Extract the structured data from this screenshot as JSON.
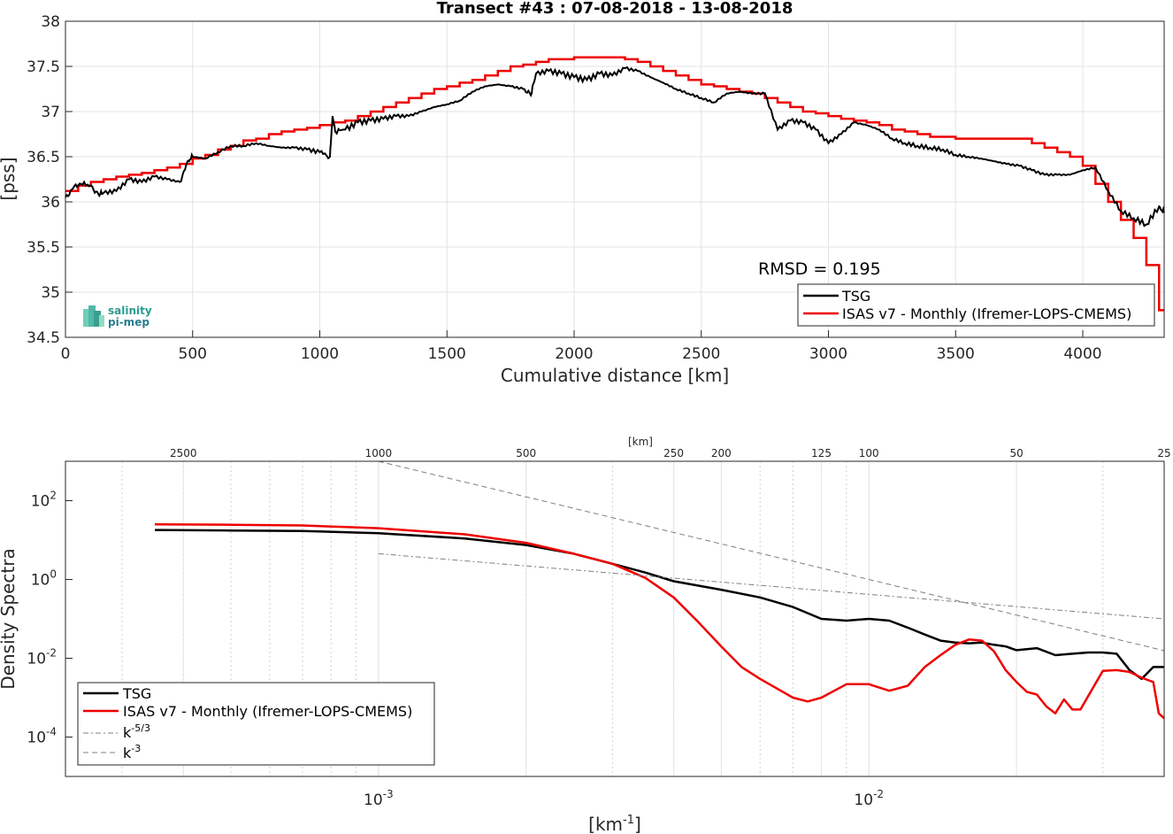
{
  "chart_data": [
    {
      "type": "line",
      "title": "Transect #43 : 07-08-2018 - 13-08-2018",
      "xlabel": "Cumulative distance [km]",
      "ylabel": "[pss]",
      "xlim": [
        0,
        4320
      ],
      "ylim": [
        34.5,
        38
      ],
      "xticks": [
        0,
        500,
        1000,
        1500,
        2000,
        2500,
        3000,
        3500,
        4000
      ],
      "yticks": [
        34.5,
        35,
        35.5,
        36,
        36.5,
        37,
        37.5,
        38
      ],
      "ytick_labels": [
        "34.5",
        "35",
        "35.5",
        "36",
        "36.5",
        "37",
        "37.5",
        "38"
      ],
      "grid": true,
      "legend_position": "bottom-right",
      "annotation": "RMSD = 0.195",
      "logo": [
        "salinity",
        "pi-mep"
      ],
      "series": [
        {
          "name": "TSG",
          "color": "#000000",
          "x": [
            0,
            30,
            60,
            100,
            130,
            150,
            200,
            250,
            300,
            350,
            400,
            450,
            480,
            500,
            550,
            600,
            650,
            700,
            750,
            800,
            850,
            900,
            950,
            1000,
            1040,
            1050,
            1060,
            1100,
            1150,
            1200,
            1250,
            1300,
            1350,
            1400,
            1450,
            1500,
            1550,
            1600,
            1650,
            1700,
            1750,
            1800,
            1830,
            1850,
            1900,
            1950,
            2000,
            2050,
            2100,
            2150,
            2200,
            2250,
            2300,
            2350,
            2400,
            2450,
            2500,
            2550,
            2600,
            2650,
            2700,
            2750,
            2800,
            2850,
            2900,
            2950,
            3000,
            3050,
            3100,
            3150,
            3200,
            3250,
            3300,
            3350,
            3400,
            3450,
            3500,
            3550,
            3600,
            3650,
            3700,
            3750,
            3800,
            3850,
            3900,
            3950,
            4000,
            4050,
            4100,
            4150,
            4200,
            4250,
            4300,
            4320
          ],
          "y": [
            36.05,
            36.15,
            36.2,
            36.18,
            36.08,
            36.1,
            36.12,
            36.25,
            36.22,
            36.28,
            36.25,
            36.22,
            36.45,
            36.5,
            36.48,
            36.55,
            36.62,
            36.62,
            36.65,
            36.62,
            36.6,
            36.6,
            36.58,
            36.55,
            36.5,
            36.95,
            36.78,
            36.8,
            36.88,
            36.9,
            36.92,
            36.95,
            36.95,
            37.0,
            37.05,
            37.08,
            37.12,
            37.22,
            37.28,
            37.3,
            37.28,
            37.25,
            37.18,
            37.42,
            37.45,
            37.42,
            37.38,
            37.35,
            37.42,
            37.4,
            37.48,
            37.45,
            37.38,
            37.32,
            37.25,
            37.2,
            37.15,
            37.1,
            37.2,
            37.22,
            37.2,
            37.2,
            36.8,
            36.9,
            36.88,
            36.8,
            36.65,
            36.75,
            36.88,
            36.85,
            36.8,
            36.7,
            36.65,
            36.62,
            36.6,
            36.58,
            36.52,
            36.5,
            36.48,
            36.45,
            36.42,
            36.4,
            36.35,
            36.3,
            36.3,
            36.3,
            36.35,
            36.38,
            36.12,
            35.9,
            35.82,
            35.75,
            35.95,
            35.88
          ]
        },
        {
          "name": "ISAS v7 - Monthly (Ifremer-LOPS-CMEMS)",
          "color": "#ee0000",
          "x": [
            0,
            50,
            100,
            150,
            200,
            250,
            300,
            350,
            400,
            450,
            500,
            550,
            600,
            650,
            700,
            750,
            800,
            850,
            900,
            950,
            1000,
            1050,
            1100,
            1150,
            1200,
            1250,
            1300,
            1350,
            1400,
            1450,
            1500,
            1550,
            1600,
            1650,
            1700,
            1750,
            1800,
            1850,
            1900,
            1950,
            2000,
            2050,
            2100,
            2150,
            2200,
            2250,
            2300,
            2350,
            2400,
            2450,
            2500,
            2550,
            2600,
            2650,
            2700,
            2750,
            2800,
            2850,
            2900,
            2950,
            3000,
            3050,
            3100,
            3150,
            3200,
            3250,
            3300,
            3350,
            3400,
            3450,
            3500,
            3550,
            3600,
            3650,
            3700,
            3750,
            3800,
            3850,
            3900,
            3950,
            4000,
            4050,
            4100,
            4150,
            4200,
            4250,
            4280,
            4300,
            4320
          ],
          "y": [
            36.12,
            36.18,
            36.22,
            36.25,
            36.28,
            36.3,
            36.32,
            36.35,
            36.38,
            36.42,
            36.48,
            36.52,
            36.58,
            36.62,
            36.68,
            36.7,
            36.75,
            36.78,
            36.8,
            36.82,
            36.85,
            36.88,
            36.9,
            36.95,
            37.0,
            37.05,
            37.1,
            37.15,
            37.2,
            37.25,
            37.28,
            37.32,
            37.35,
            37.4,
            37.45,
            37.5,
            37.52,
            37.55,
            37.58,
            37.58,
            37.6,
            37.6,
            37.6,
            37.6,
            37.58,
            37.55,
            37.5,
            37.45,
            37.4,
            37.35,
            37.3,
            37.28,
            37.25,
            37.22,
            37.2,
            37.15,
            37.1,
            37.05,
            37.0,
            36.98,
            36.95,
            36.92,
            36.9,
            36.88,
            36.85,
            36.8,
            36.78,
            36.75,
            36.72,
            36.72,
            36.7,
            36.7,
            36.7,
            36.7,
            36.7,
            36.7,
            36.65,
            36.6,
            36.55,
            36.5,
            36.4,
            36.2,
            36.0,
            35.8,
            35.6,
            35.3,
            35.3,
            34.8,
            34.8
          ]
        }
      ]
    },
    {
      "type": "line",
      "title": "",
      "xlabel": "[km⁻¹]",
      "xlabel_base": "[km",
      "xlabel_sup": "-1",
      "xlabel_end": "]",
      "ylabel": "Density Spectra",
      "x_scale": "log",
      "y_scale": "log",
      "xlim": [
        0.00023,
        0.04
      ],
      "ylim": [
        1e-05,
        1000
      ],
      "xticks": [
        0.001,
        0.01
      ],
      "xtick_labels": [
        {
          "base": "10",
          "exp": "-3"
        },
        {
          "base": "10",
          "exp": "-2"
        }
      ],
      "yticks": [
        0.0001,
        0.01,
        1,
        100
      ],
      "ytick_labels": [
        {
          "base": "10",
          "exp": "-4"
        },
        {
          "base": "10",
          "exp": "-2"
        },
        {
          "base": "10",
          "exp": "0"
        },
        {
          "base": "10",
          "exp": "2"
        }
      ],
      "top_axis_label": "[km]",
      "top_axis_ticks": [
        2500,
        1000,
        500,
        250,
        200,
        125,
        100,
        50,
        25
      ],
      "grid": true,
      "legend_position": "bottom-left",
      "series": [
        {
          "name": "TSG",
          "color": "#000000",
          "x": [
            0.00035,
            0.0005,
            0.0007,
            0.001,
            0.0015,
            0.002,
            0.0025,
            0.003,
            0.0035,
            0.004,
            0.005,
            0.006,
            0.007,
            0.008,
            0.009,
            0.01,
            0.011,
            0.012,
            0.013,
            0.014,
            0.015,
            0.016,
            0.017,
            0.018,
            0.019,
            0.02,
            0.022,
            0.024,
            0.026,
            0.028,
            0.03,
            0.032,
            0.034,
            0.036,
            0.038,
            0.04
          ],
          "y": [
            18,
            17.5,
            17,
            15,
            11,
            7.5,
            4.5,
            2.5,
            1.5,
            0.9,
            0.55,
            0.35,
            0.2,
            0.1,
            0.09,
            0.1,
            0.09,
            0.06,
            0.04,
            0.028,
            0.025,
            0.024,
            0.025,
            0.022,
            0.02,
            0.016,
            0.018,
            0.012,
            0.013,
            0.014,
            0.014,
            0.013,
            0.005,
            0.003,
            0.006,
            0.006
          ]
        },
        {
          "name": "ISAS v7 - Monthly (Ifremer-LOPS-CMEMS)",
          "color": "#ee0000",
          "x": [
            0.00035,
            0.0005,
            0.0007,
            0.001,
            0.0015,
            0.002,
            0.0025,
            0.003,
            0.0035,
            0.004,
            0.0045,
            0.005,
            0.0055,
            0.006,
            0.007,
            0.0075,
            0.008,
            0.009,
            0.01,
            0.011,
            0.012,
            0.013,
            0.014,
            0.015,
            0.016,
            0.017,
            0.018,
            0.019,
            0.02,
            0.021,
            0.022,
            0.023,
            0.024,
            0.025,
            0.026,
            0.027,
            0.028,
            0.03,
            0.032,
            0.034,
            0.036,
            0.038,
            0.039,
            0.04
          ],
          "y": [
            25,
            24.5,
            23.5,
            20,
            14,
            8.5,
            4.5,
            2.5,
            1.1,
            0.35,
            0.08,
            0.02,
            0.006,
            0.003,
            0.001,
            0.0008,
            0.001,
            0.0022,
            0.0022,
            0.0015,
            0.002,
            0.006,
            0.012,
            0.022,
            0.03,
            0.028,
            0.015,
            0.005,
            0.0025,
            0.0014,
            0.0012,
            0.0006,
            0.0004,
            0.0009,
            0.0005,
            0.0005,
            0.0011,
            0.0048,
            0.005,
            0.0045,
            0.0032,
            0.0025,
            0.0004,
            0.0003
          ]
        },
        {
          "name": "k⁻⁵ᐟ³",
          "name_base": "k",
          "name_sup": "-5/3",
          "color": "#7f7f7f",
          "dash": "dashdot",
          "x": [
            0.001,
            0.04
          ],
          "y": [
            4.5,
            0.1
          ]
        },
        {
          "name": "k⁻³",
          "name_base": "k",
          "name_sup": "-3",
          "color": "#7f7f7f",
          "dash": "dashed",
          "x": [
            0.001,
            0.04
          ],
          "y": [
            1000,
            0.0156
          ]
        }
      ]
    }
  ]
}
